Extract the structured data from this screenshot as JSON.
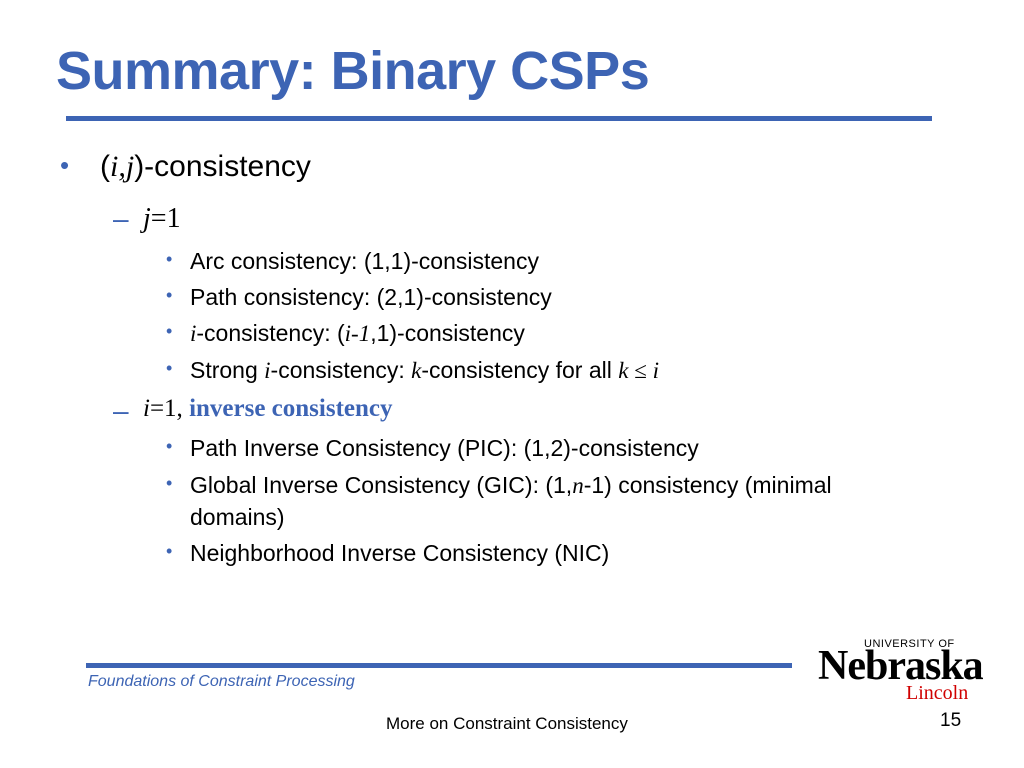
{
  "title": "Summary: Binary CSPs",
  "colors": {
    "accent": "#3d64b4",
    "logo_red": "#d00000"
  },
  "bullets": {
    "ij": {
      "open": "(",
      "i": "i",
      "comma": ",",
      "j": "j",
      "rest": ")-consistency"
    },
    "j1": {
      "j": "j",
      "rest": "=1"
    },
    "arc": "Arc consistency: (1,1)-consistency",
    "path": "Path consistency: (2,1)-consistency",
    "icons": {
      "i": "i",
      "mid": "-consistency: (",
      "im1": "i-1",
      "rest": ",1)-consistency"
    },
    "strong": {
      "pre": "Strong ",
      "i": "i",
      "mid": "-consistency: ",
      "k": "k",
      "mid2": "-consistency for all ",
      "k2": "k",
      "le": " ≤ ",
      "i2": "i"
    },
    "i1": {
      "i": "i",
      "eq": "=1, ",
      "inv": "inverse consistency"
    },
    "pic": "Path Inverse Consistency (PIC): (1,2)-consistency",
    "gic": {
      "pre": "Global Inverse Consistency (GIC): (1,",
      "n": "n",
      "post": "-1) consistency (minimal",
      "line2": "domains)"
    },
    "nic": "Neighborhood Inverse Consistency (NIC)"
  },
  "footer": {
    "course": "Foundations of Constraint Processing",
    "center": "More on Constraint Consistency",
    "page": "15"
  },
  "logo": {
    "university": "UNIVERSITY OF",
    "name": "Nebraska",
    "campus": "Lincoln"
  },
  "bullet_marks": {
    "level1": "•",
    "level2": "–",
    "level3": "•"
  }
}
